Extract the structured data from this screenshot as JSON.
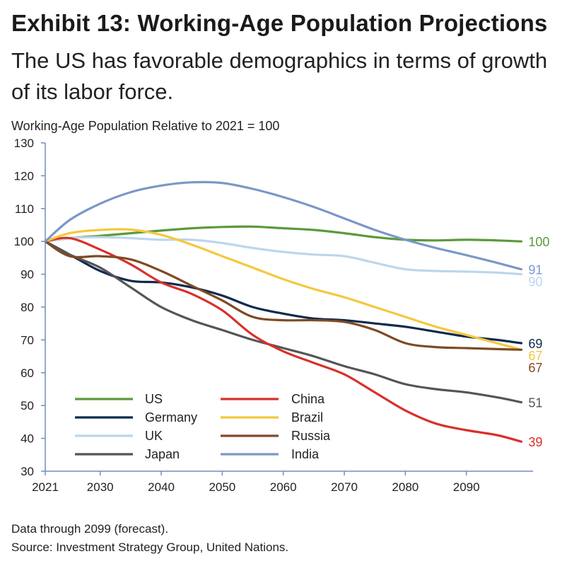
{
  "header": {
    "title": "Exhibit 13: Working-Age Population Projections",
    "subtitle": "The US has favorable demographics in terms of growth of its labor force."
  },
  "footer": {
    "note": "Data through 2099 (forecast).",
    "source": "Source: Investment Strategy Group, United Nations."
  },
  "chart_data": {
    "type": "line",
    "title": "",
    "xlabel": "",
    "ylabel": "Working-Age Population Relative to 2021 = 100",
    "xlim": [
      2021,
      2100
    ],
    "ylim": [
      30,
      130
    ],
    "x_ticks": [
      "2021",
      "2030",
      "2040",
      "2050",
      "2060",
      "2070",
      "2080",
      "2090"
    ],
    "x_tick_values": [
      2021,
      2030,
      2040,
      2050,
      2060,
      2070,
      2080,
      2090
    ],
    "y_ticks": [
      30,
      40,
      50,
      60,
      70,
      80,
      90,
      100,
      110,
      120,
      130
    ],
    "grid": false,
    "legend_placement": "bottom-left",
    "x": [
      2021,
      2025,
      2030,
      2035,
      2040,
      2045,
      2050,
      2055,
      2060,
      2065,
      2070,
      2075,
      2080,
      2085,
      2090,
      2095,
      2099
    ],
    "series": [
      {
        "name": "US",
        "color": "#5a9a3a",
        "end_label": "100",
        "values": [
          100,
          101,
          101.7,
          102.5,
          103.3,
          104,
          104.4,
          104.5,
          104,
          103.5,
          102.5,
          101.3,
          100.5,
          100.3,
          100.5,
          100.3,
          100
        ]
      },
      {
        "name": "Germany",
        "color": "#0e2a4d",
        "end_label": "69",
        "values": [
          100,
          96,
          91,
          88,
          87.5,
          86,
          83.5,
          80,
          78,
          76.5,
          76,
          75,
          74,
          72.5,
          71,
          70,
          69
        ]
      },
      {
        "name": "UK",
        "color": "#bcd6ec",
        "end_label": "90",
        "values": [
          100,
          101,
          101.3,
          101,
          100.5,
          100.5,
          99.5,
          98,
          96.8,
          96,
          95.5,
          93.5,
          91.5,
          91,
          90.8,
          90.5,
          90
        ]
      },
      {
        "name": "Japan",
        "color": "#555555",
        "end_label": "51",
        "values": [
          100,
          96,
          92,
          86,
          80,
          76,
          73,
          70,
          67.5,
          65,
          62,
          59.5,
          56.5,
          55,
          54,
          52.5,
          51
        ]
      },
      {
        "name": "China",
        "color": "#d9302a",
        "end_label": "39",
        "values": [
          100,
          101,
          97.5,
          93,
          87.5,
          84,
          79,
          71.5,
          66.5,
          63,
          59.5,
          54,
          48.5,
          44.5,
          42.5,
          41,
          39
        ]
      },
      {
        "name": "Brazil",
        "color": "#f5c83c",
        "end_label": "67",
        "values": [
          100,
          102.5,
          103.5,
          103.6,
          102,
          99,
          95.5,
          92,
          88.5,
          85.5,
          83,
          80,
          77,
          74,
          71.5,
          69,
          67
        ]
      },
      {
        "name": "Russia",
        "color": "#7f4a24",
        "end_label": "67",
        "values": [
          100,
          95.5,
          95.5,
          94.5,
          91,
          86.5,
          82,
          77,
          76,
          76,
          75.5,
          73,
          69,
          67.8,
          67.5,
          67.2,
          67
        ]
      },
      {
        "name": "India",
        "color": "#7a98c8",
        "end_label": "91",
        "values": [
          100,
          106.5,
          111.5,
          115,
          117,
          118,
          117.8,
          116,
          113.5,
          110.5,
          107,
          103.5,
          100.5,
          98,
          95.8,
          93.5,
          91.5
        ]
      }
    ]
  }
}
